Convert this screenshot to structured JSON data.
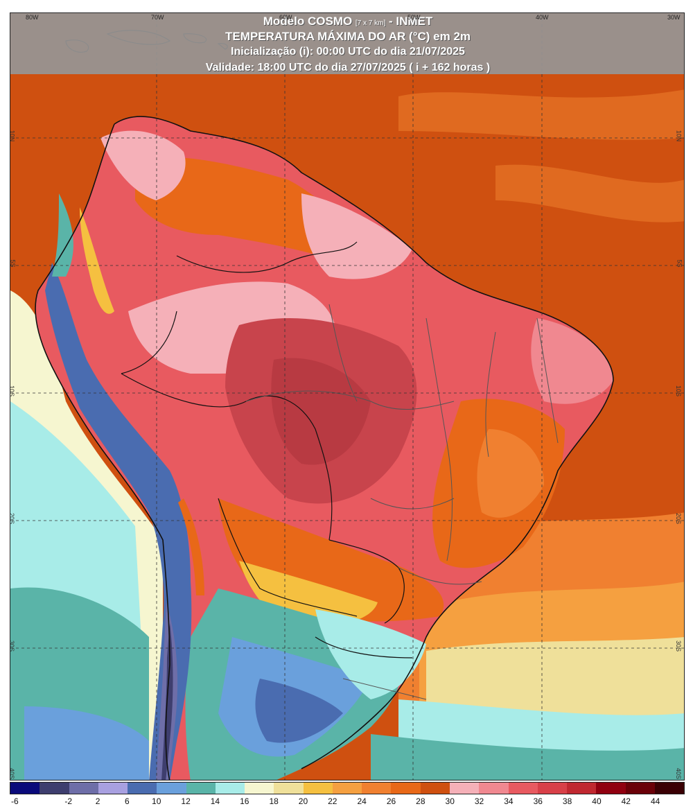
{
  "header": {
    "model_prefix": "Modelo COSMO ",
    "model_res": "[7 x 7 km]",
    "model_suffix": " - INMET",
    "title": "TEMPERATURA MÁXIMA DO AR (°C) em 2m",
    "init": "Inicialização (i): 00:00 UTC do dia 21/07/2025",
    "valid": "Validade: 18:00 UTC do dia 27/07/2025 ( i + 162 horas )"
  },
  "axes": {
    "lon_labels": [
      "80W",
      "70W",
      "60W",
      "50W",
      "40W",
      "30W"
    ],
    "lat_labels": [
      "10N",
      "5S",
      "10S",
      "20S",
      "30S",
      "40S"
    ],
    "lat_labels_left": [
      "10N",
      "5S",
      "10S",
      "20S",
      "30S",
      "40S"
    ]
  },
  "legend": {
    "colors": [
      "#0a0a7a",
      "#3e3e6e",
      "#6e6ea8",
      "#a8a0e0",
      "#4a6cb0",
      "#6aa0dc",
      "#5ab4a8",
      "#a8ece8",
      "#f6f6d0",
      "#efe09a",
      "#f5c040",
      "#f5a040",
      "#f08030",
      "#e86818",
      "#cf5010",
      "#f5b0b8",
      "#f08890",
      "#e85a60",
      "#d84048",
      "#c02830",
      "#900010",
      "#6a0008",
      "#3a0004"
    ],
    "labels": [
      "-6",
      "-2",
      "2",
      "6",
      "10",
      "12",
      "14",
      "16",
      "18",
      "20",
      "22",
      "24",
      "26",
      "28",
      "30",
      "32",
      "34",
      "36",
      "38",
      "40",
      "42",
      "44"
    ],
    "unit": "°C"
  },
  "map_colors": {
    "ocean_warm": "#cf5010",
    "ocean_cool": "#f5c040",
    "ocean_cold": "#a8ece8",
    "land_hot": "#e85a60",
    "land_pink": "#f5b0b8",
    "land_dark": "#c8444c",
    "andes": "#4a6cb0"
  }
}
